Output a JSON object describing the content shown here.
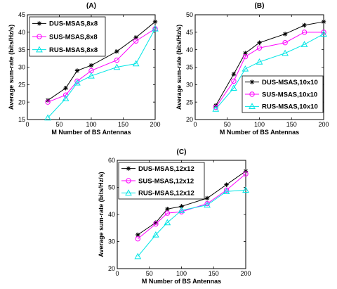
{
  "chart_data": [
    {
      "panel_label": "(A)",
      "type": "line",
      "xlabel": "M Number of BS Antennas",
      "ylabel": "Average sum-rate (bits/Hz/s)",
      "xlim": [
        0,
        200
      ],
      "ylim": [
        15,
        45
      ],
      "xticks": [
        "0",
        "50",
        "100",
        "150",
        "200"
      ],
      "yticks": [
        "15",
        "20",
        "25",
        "30",
        "35",
        "40",
        "45"
      ],
      "legend_position": "top-left",
      "series": [
        {
          "name": "DUS-MSAS,8x8",
          "color": "#000000",
          "marker": "star",
          "x": [
            32,
            60,
            78,
            100,
            140,
            170,
            200
          ],
          "y": [
            20.5,
            24,
            29,
            30.5,
            34.5,
            38.5,
            43
          ]
        },
        {
          "name": "SUS-MSAS,8x8",
          "color": "#ff00ff",
          "marker": "circle",
          "x": [
            32,
            60,
            78,
            100,
            140,
            170,
            200
          ],
          "y": [
            20,
            22,
            26,
            29,
            32,
            37.5,
            41
          ]
        },
        {
          "name": "RUS-MSAS,8x8",
          "color": "#00e5e5",
          "marker": "triangle",
          "x": [
            32,
            60,
            78,
            100,
            140,
            170,
            200
          ],
          "y": [
            15.5,
            21,
            25.5,
            27.5,
            30,
            31,
            41
          ]
        }
      ]
    },
    {
      "panel_label": "(B)",
      "type": "line",
      "xlabel": "M Number of BS Antennas",
      "ylabel": "Average sum-rate (bits/Hz/s)",
      "xlim": [
        0,
        200
      ],
      "ylim": [
        20,
        50
      ],
      "xticks": [
        "0",
        "50",
        "100",
        "150",
        "200"
      ],
      "yticks": [
        "20",
        "25",
        "30",
        "35",
        "40",
        "45",
        "50"
      ],
      "legend_position": "bottom-right",
      "series": [
        {
          "name": "DUS-MSAS,10x10",
          "color": "#000000",
          "marker": "star",
          "x": [
            32,
            60,
            78,
            100,
            140,
            170,
            200
          ],
          "y": [
            24,
            33,
            39,
            42,
            44.5,
            47,
            48
          ]
        },
        {
          "name": "SUS-MSAS,10x10",
          "color": "#ff00ff",
          "marker": "circle",
          "x": [
            32,
            60,
            78,
            100,
            140,
            170,
            200
          ],
          "y": [
            23.5,
            31,
            38,
            40.5,
            42,
            45,
            45
          ]
        },
        {
          "name": "RUS-MSAS,10x10",
          "color": "#00e5e5",
          "marker": "triangle",
          "x": [
            32,
            60,
            78,
            100,
            140,
            170,
            200
          ],
          "y": [
            23,
            29,
            34.5,
            36.5,
            39,
            41.5,
            44.5
          ]
        }
      ]
    },
    {
      "panel_label": "(C)",
      "type": "line",
      "xlabel": "M Number of BS Antennas",
      "ylabel": "Average sum-rate (bits/Hz/s)",
      "xlim": [
        0,
        200
      ],
      "ylim": [
        20,
        60
      ],
      "xticks": [
        "0",
        "50",
        "100",
        "150",
        "200"
      ],
      "yticks": [
        "20",
        "30",
        "40",
        "50",
        "60"
      ],
      "legend_position": "top-left",
      "series": [
        {
          "name": "DUS-MSAS,12x12",
          "color": "#000000",
          "marker": "star",
          "x": [
            32,
            60,
            78,
            100,
            140,
            170,
            200
          ],
          "y": [
            32.5,
            37,
            42,
            43,
            46,
            51,
            56
          ]
        },
        {
          "name": "SUS-MSAS,12x12",
          "color": "#ff00ff",
          "marker": "circle",
          "x": [
            32,
            60,
            78,
            100,
            140,
            170,
            200
          ],
          "y": [
            31,
            36.5,
            40.5,
            41,
            44,
            49,
            55
          ]
        },
        {
          "name": "RUS-MSAS,12x12",
          "color": "#00e5e5",
          "marker": "triangle",
          "x": [
            32,
            60,
            78,
            100,
            140,
            170,
            200
          ],
          "y": [
            24.5,
            32.5,
            37,
            41.5,
            43.5,
            48.5,
            49
          ]
        }
      ]
    }
  ]
}
